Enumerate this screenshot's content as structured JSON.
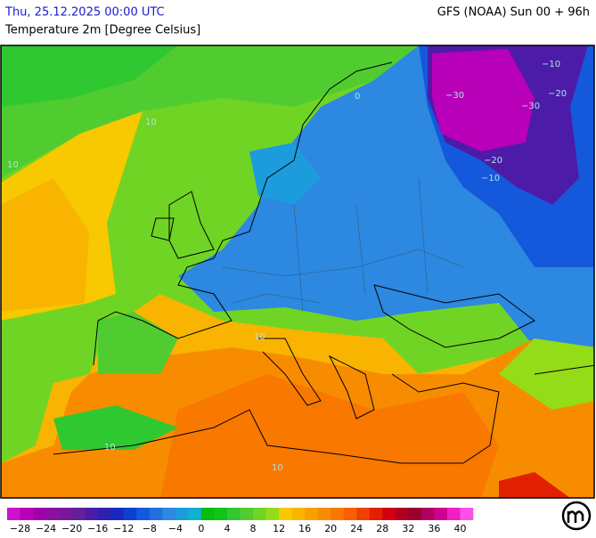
{
  "header": {
    "datetime": "Thu, 25.12.2025 00:00 UTC",
    "model": "GFS (NOAA) Sun 00 + 96h",
    "parameter": "Temperature 2m [Degree Celsius]"
  },
  "map": {
    "contour_labels": [
      "−10",
      "−20",
      "−30",
      "−30",
      "−20",
      "−10",
      "10",
      "10",
      "10",
      "10",
      "10",
      "0"
    ]
  },
  "legend": {
    "ticks": [
      "−28",
      "−24",
      "−20",
      "−16",
      "−12",
      "−8",
      "−4",
      "0",
      "4",
      "8",
      "12",
      "16",
      "20",
      "24",
      "28",
      "32",
      "36",
      "40"
    ],
    "colors": [
      "#d010d0",
      "#b800b8",
      "#a000a8",
      "#8c10a0",
      "#781898",
      "#642098",
      "#4c1ca8",
      "#3020b0",
      "#1a28c0",
      "#0c40d0",
      "#1458dc",
      "#2070e0",
      "#2c88e0",
      "#1c9cdc",
      "#10b0d0",
      "#08bc10",
      "#10c418",
      "#30c830",
      "#50cc30",
      "#70d424",
      "#94dc18",
      "#f8c800",
      "#f8b400",
      "#f8a000",
      "#f88c00",
      "#f87800",
      "#f86000",
      "#f04000",
      "#e02000",
      "#d00010",
      "#b00020",
      "#980030",
      "#b00060",
      "#d00090",
      "#f020c0",
      "#ff50e8"
    ]
  }
}
